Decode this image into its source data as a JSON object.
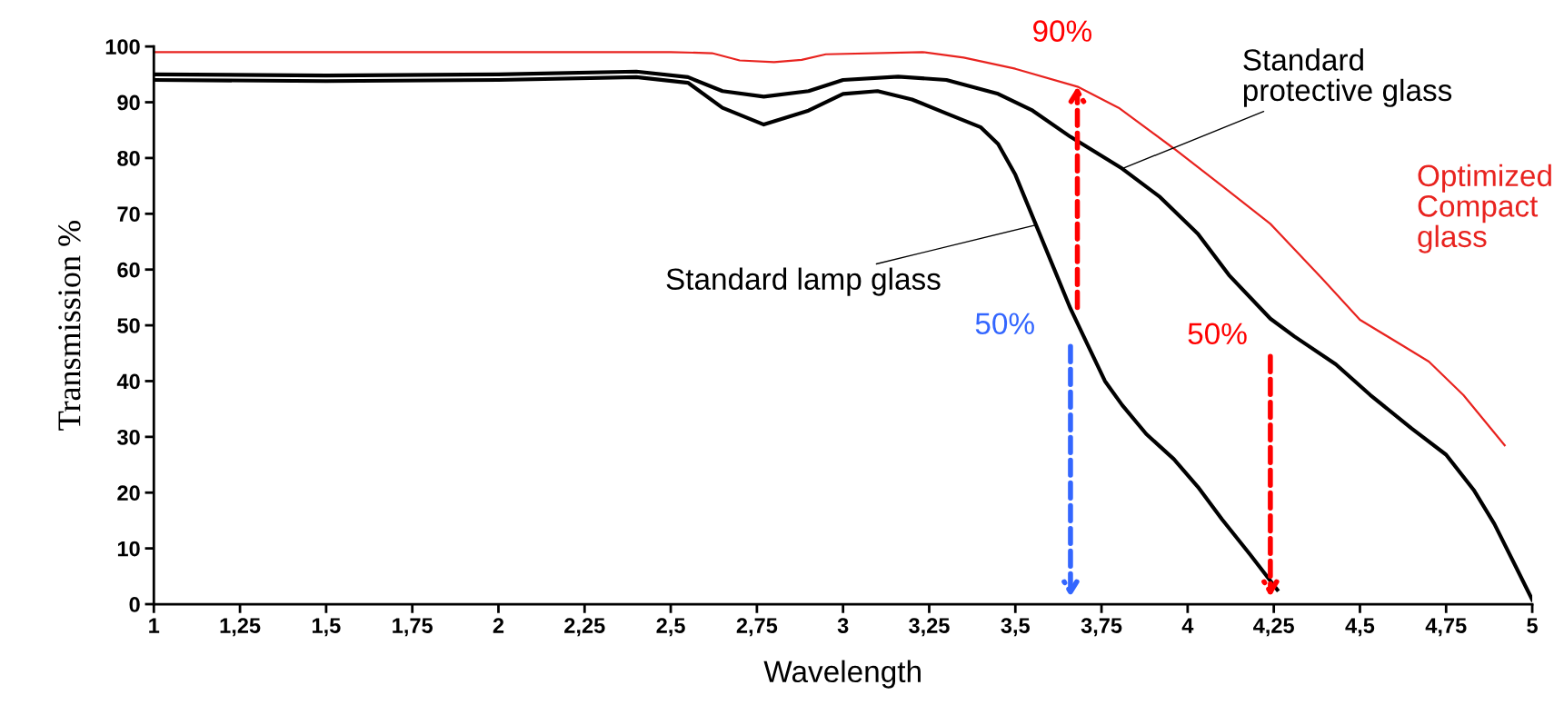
{
  "chart_data": {
    "type": "line",
    "xlabel": "Wavelength",
    "ylabel": "Transmission %",
    "xlim": [
      1,
      5
    ],
    "ylim": [
      0,
      100
    ],
    "xticks": [
      1,
      {
        "value": 1.25,
        "label": "1,25"
      },
      {
        "value": 1.5,
        "label": "1,5"
      },
      {
        "value": 1.75,
        "label": "1,75"
      },
      2,
      {
        "value": 2.25,
        "label": "2,25"
      },
      {
        "value": 2.5,
        "label": "2,5"
      },
      {
        "value": 2.75,
        "label": "2,75"
      },
      3,
      {
        "value": 3.25,
        "label": "3,25"
      },
      {
        "value": 3.5,
        "label": "3,5"
      },
      {
        "value": 3.75,
        "label": "3,75"
      },
      4,
      {
        "value": 4.25,
        "label": "4,25"
      },
      {
        "value": 4.5,
        "label": "4,5"
      },
      {
        "value": 4.75,
        "label": "4,75"
      },
      5
    ],
    "yticks": [
      0,
      10,
      20,
      30,
      40,
      50,
      60,
      70,
      80,
      90,
      100
    ],
    "grid": false,
    "legend": false,
    "marker": "none",
    "line_style": "solid",
    "series": [
      {
        "color": "#000000",
        "x": [
          1.0,
          1.5,
          2.0,
          2.4,
          2.55,
          2.65,
          2.77,
          2.9,
          3.0,
          3.1,
          3.2,
          3.3,
          3.4,
          3.45,
          3.5,
          3.56,
          3.62,
          3.66,
          3.71,
          3.76,
          3.81,
          3.88,
          3.96,
          4.03,
          4.1,
          4.18,
          4.26
        ],
        "values": [
          94,
          93.8,
          94,
          94.5,
          93.5,
          89,
          86,
          88.5,
          91.5,
          92,
          90.5,
          88,
          85.5,
          82.5,
          77,
          68,
          59,
          53,
          46.5,
          40,
          35.7,
          30.5,
          26,
          21,
          15.2,
          9,
          2.6
        ]
      },
      {
        "color": "#000000",
        "x": [
          1.0,
          1.5,
          2.0,
          2.4,
          2.55,
          2.65,
          2.77,
          2.9,
          3.0,
          3.16,
          3.3,
          3.45,
          3.55,
          3.66,
          3.81,
          3.92,
          4.03,
          4.12,
          4.24,
          4.31,
          4.43,
          4.53,
          4.65,
          4.75,
          4.83,
          4.89,
          4.95,
          5.0
        ],
        "values": [
          95,
          94.8,
          95,
          95.5,
          94.5,
          92,
          91,
          92,
          94,
          94.6,
          94,
          91.5,
          88.5,
          83.8,
          78.1,
          73,
          66.4,
          59,
          51.2,
          48,
          43,
          37.5,
          31.5,
          26.8,
          20.5,
          14.4,
          7,
          0.8
        ]
      },
      {
        "name": "Optimized Compact glass",
        "color": "#e8231f",
        "x": [
          1.0,
          1.5,
          2.0,
          2.5,
          2.62,
          2.7,
          2.8,
          2.88,
          2.95,
          3.23,
          3.35,
          3.5,
          3.68,
          3.8,
          3.96,
          4.1,
          4.24,
          4.39,
          4.5,
          4.62,
          4.7,
          4.8,
          4.92
        ],
        "values": [
          99,
          99,
          99,
          99,
          98.8,
          97.5,
          97.2,
          97.6,
          98.6,
          99,
          98,
          96,
          92.8,
          89,
          81.7,
          75,
          68.2,
          58.4,
          51,
          46.5,
          43.5,
          37.5,
          28.5
        ]
      }
    ],
    "annotations": [
      {
        "text": "Standard lamp glass",
        "x": 3.56,
        "y": 68
      },
      {
        "text": "Standard protective glass",
        "x": 3.81,
        "y": 78.1
      },
      {
        "text": "90%",
        "x": 3.68,
        "y": 92.8
      },
      {
        "text": "50%",
        "x": 3.66,
        "y": 53
      },
      {
        "text": "50%",
        "x": 4.24,
        "y": 51.2
      }
    ]
  }
}
